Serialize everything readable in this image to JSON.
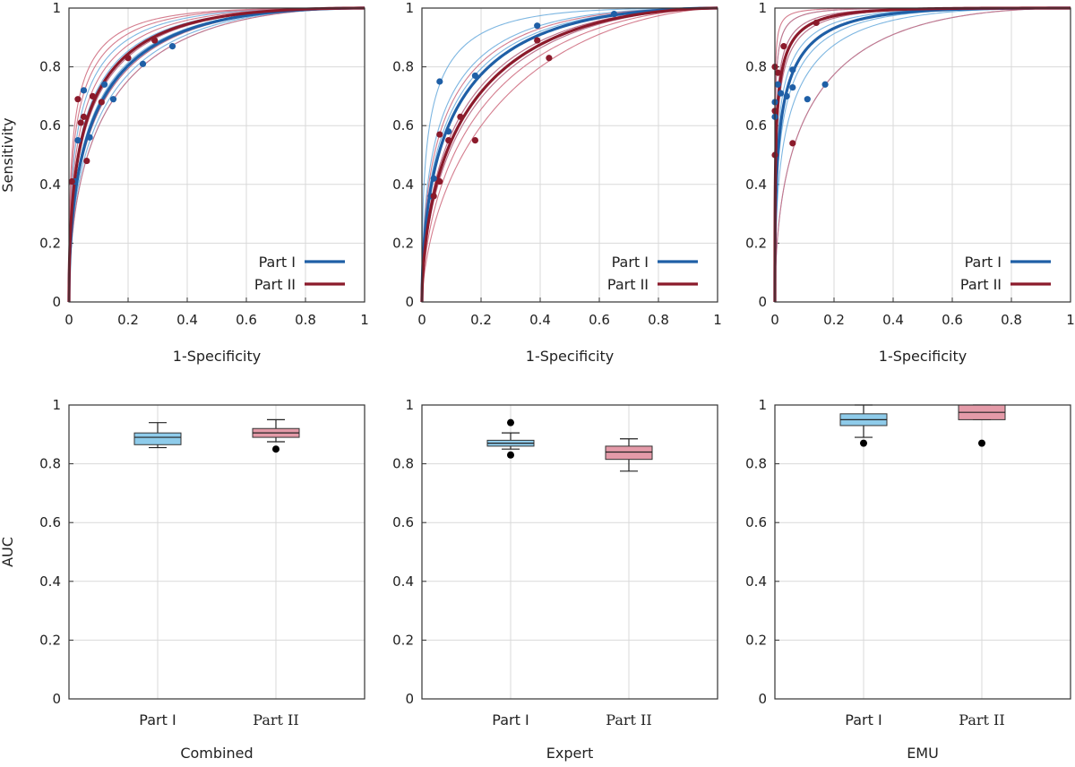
{
  "colors": {
    "part1": "#1f5fa6",
    "part2": "#8b1a2b",
    "part1_thin": "#6faede",
    "part2_thin": "#cf6f82",
    "box1_fill": "#8ecbea",
    "box2_fill": "#e49aa8",
    "grid": "#d9d9d9",
    "frame": "#333333"
  },
  "chart_data": [
    {
      "type": "line",
      "panel": "roc-combined",
      "xlabel": "1-Specificity",
      "ylabel": "Sensitivity",
      "xlim": [
        0,
        1
      ],
      "ylim": [
        0,
        1
      ],
      "xticks": [
        "0",
        "0.2",
        "0.4",
        "0.6",
        "0.8",
        "1"
      ],
      "yticks": [
        "0",
        "0.2",
        "0.4",
        "0.6",
        "0.8",
        "1"
      ],
      "grid": true,
      "legend": {
        "placement": "bottom-right",
        "entries": [
          "Part I",
          "Part II"
        ]
      },
      "series": [
        {
          "name": "Part I",
          "summary_auc": 0.885,
          "points": [
            [
              0.02,
              0.41
            ],
            [
              0.05,
              0.72
            ],
            [
              0.07,
              0.56
            ],
            [
              0.12,
              0.74
            ],
            [
              0.15,
              0.69
            ],
            [
              0.25,
              0.81
            ],
            [
              0.35,
              0.87
            ],
            [
              0.03,
              0.55
            ]
          ],
          "individual_auc": [
            0.86,
            0.87,
            0.88,
            0.89,
            0.9,
            0.91,
            0.93
          ]
        },
        {
          "name": "Part II",
          "summary_auc": 0.905,
          "points": [
            [
              0.01,
              0.41
            ],
            [
              0.03,
              0.69
            ],
            [
              0.04,
              0.61
            ],
            [
              0.05,
              0.63
            ],
            [
              0.06,
              0.48
            ],
            [
              0.08,
              0.7
            ],
            [
              0.11,
              0.68
            ],
            [
              0.2,
              0.83
            ],
            [
              0.29,
              0.89
            ]
          ],
          "individual_auc": [
            0.86,
            0.88,
            0.9,
            0.92,
            0.94,
            0.95
          ]
        }
      ]
    },
    {
      "type": "line",
      "panel": "roc-expert",
      "xlabel": "1-Specificity",
      "ylabel": "",
      "xlim": [
        0,
        1
      ],
      "ylim": [
        0,
        1
      ],
      "xticks": [
        "0",
        "0.2",
        "0.4",
        "0.6",
        "0.8",
        "1"
      ],
      "yticks": [
        "0",
        "0.2",
        "0.4",
        "0.6",
        "0.8",
        "1"
      ],
      "grid": true,
      "legend": {
        "placement": "bottom-right",
        "entries": [
          "Part I",
          "Part II"
        ]
      },
      "series": [
        {
          "name": "Part I",
          "summary_auc": 0.87,
          "points": [
            [
              0.06,
              0.75
            ],
            [
              0.18,
              0.77
            ],
            [
              0.39,
              0.94
            ],
            [
              0.65,
              0.98
            ],
            [
              0.04,
              0.42
            ],
            [
              0.03,
              0.36
            ],
            [
              0.09,
              0.58
            ]
          ],
          "individual_auc": [
            0.83,
            0.85,
            0.87,
            0.88,
            0.9,
            0.94
          ]
        },
        {
          "name": "Part II",
          "summary_auc": 0.84,
          "points": [
            [
              0.04,
              0.36
            ],
            [
              0.06,
              0.41
            ],
            [
              0.06,
              0.57
            ],
            [
              0.09,
              0.55
            ],
            [
              0.13,
              0.63
            ],
            [
              0.18,
              0.55
            ],
            [
              0.39,
              0.89
            ],
            [
              0.43,
              0.83
            ]
          ],
          "individual_auc": [
            0.78,
            0.81,
            0.83,
            0.85,
            0.87,
            0.89
          ]
        }
      ]
    },
    {
      "type": "line",
      "panel": "roc-emu",
      "xlabel": "1-Specificity",
      "ylabel": "",
      "xlim": [
        0,
        1
      ],
      "ylim": [
        0,
        1
      ],
      "xticks": [
        "0",
        "0.2",
        "0.4",
        "0.6",
        "0.8",
        "1"
      ],
      "yticks": [
        "0",
        "0.2",
        "0.4",
        "0.6",
        "0.8",
        "1"
      ],
      "grid": true,
      "legend": {
        "placement": "bottom-right",
        "entries": [
          "Part I",
          "Part II"
        ]
      },
      "series": [
        {
          "name": "Part I",
          "summary_auc": 0.95,
          "points": [
            [
              0.0,
              0.63
            ],
            [
              0.0,
              0.68
            ],
            [
              0.01,
              0.74
            ],
            [
              0.02,
              0.71
            ],
            [
              0.04,
              0.7
            ],
            [
              0.06,
              0.73
            ],
            [
              0.06,
              0.79
            ],
            [
              0.11,
              0.69
            ],
            [
              0.17,
              0.74
            ]
          ],
          "individual_auc": [
            0.87,
            0.92,
            0.94,
            0.96,
            0.97,
            0.98,
            0.99
          ]
        },
        {
          "name": "Part II",
          "summary_auc": 0.975,
          "points": [
            [
              0.0,
              0.5
            ],
            [
              0.0,
              0.65
            ],
            [
              0.0,
              0.8
            ],
            [
              0.01,
              0.78
            ],
            [
              0.03,
              0.87
            ],
            [
              0.06,
              0.54
            ],
            [
              0.14,
              0.95
            ]
          ],
          "individual_auc": [
            0.87,
            0.95,
            0.97,
            0.98,
            0.99,
            0.995
          ]
        }
      ]
    },
    {
      "type": "box",
      "panel": "auc-combined",
      "xlabel": "Combined",
      "ylabel": "AUC",
      "ylim": [
        0,
        1
      ],
      "yticks": [
        "0",
        "0.2",
        "0.4",
        "0.6",
        "0.8",
        "1"
      ],
      "categories": [
        "Part I",
        "Part II"
      ],
      "boxes": [
        {
          "name": "Part I",
          "whisker_low": 0.855,
          "q1": 0.865,
          "median": 0.89,
          "q3": 0.905,
          "whisker_high": 0.94,
          "outliers": []
        },
        {
          "name": "Part II",
          "whisker_low": 0.875,
          "q1": 0.89,
          "median": 0.905,
          "q3": 0.92,
          "whisker_high": 0.95,
          "outliers": [
            0.85
          ]
        }
      ]
    },
    {
      "type": "box",
      "panel": "auc-expert",
      "xlabel": "Expert",
      "ylabel": "",
      "ylim": [
        0,
        1
      ],
      "yticks": [
        "0",
        "0.2",
        "0.4",
        "0.6",
        "0.8",
        "1"
      ],
      "categories": [
        "Part I",
        "Part II"
      ],
      "boxes": [
        {
          "name": "Part I",
          "whisker_low": 0.85,
          "q1": 0.86,
          "median": 0.87,
          "q3": 0.88,
          "whisker_high": 0.905,
          "outliers": [
            0.94,
            0.83
          ]
        },
        {
          "name": "Part II",
          "whisker_low": 0.775,
          "q1": 0.815,
          "median": 0.84,
          "q3": 0.86,
          "whisker_high": 0.885,
          "outliers": []
        }
      ]
    },
    {
      "type": "box",
      "panel": "auc-emu",
      "xlabel": "EMU",
      "ylabel": "",
      "ylim": [
        0,
        1
      ],
      "yticks": [
        "0",
        "0.2",
        "0.4",
        "0.6",
        "0.8",
        "1"
      ],
      "categories": [
        "Part I",
        "Part II"
      ],
      "boxes": [
        {
          "name": "Part I",
          "whisker_low": 0.89,
          "q1": 0.93,
          "median": 0.95,
          "q3": 0.97,
          "whisker_high": 1.0,
          "outliers": [
            0.87
          ]
        },
        {
          "name": "Part II",
          "whisker_low": 0.95,
          "q1": 0.95,
          "median": 0.975,
          "q3": 1.0,
          "whisker_high": 1.0,
          "outliers": [
            0.87
          ]
        }
      ]
    }
  ]
}
